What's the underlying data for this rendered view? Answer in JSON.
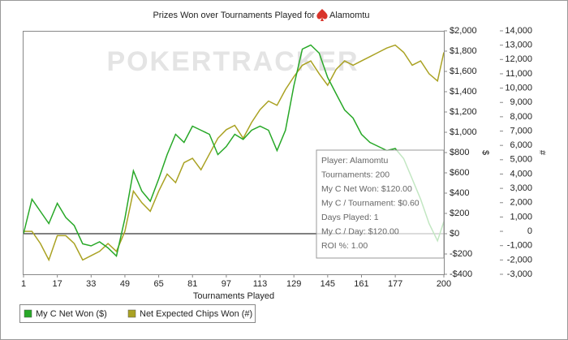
{
  "chart_data": {
    "type": "line",
    "title": "Prizes Won over Tournaments Played for",
    "player": "Alamomtu",
    "watermark": "POKERTRACKER",
    "x_label": "Tournaments Played",
    "y_label": "$",
    "y2_label": "#",
    "x": [
      1,
      5,
      9,
      13,
      17,
      21,
      25,
      29,
      33,
      37,
      41,
      45,
      49,
      53,
      57,
      61,
      65,
      69,
      73,
      77,
      81,
      85,
      89,
      93,
      97,
      101,
      105,
      109,
      113,
      117,
      121,
      125,
      129,
      133,
      137,
      141,
      145,
      149,
      153,
      157,
      161,
      165,
      169,
      173,
      177,
      181,
      185,
      189,
      193,
      197,
      200
    ],
    "series": [
      {
        "name": "My C Net Won ($)",
        "color": "#27a827",
        "values": [
          0,
          340,
          220,
          100,
          300,
          160,
          80,
          -100,
          -120,
          -80,
          -140,
          -220,
          150,
          620,
          420,
          320,
          540,
          780,
          980,
          900,
          1060,
          1020,
          980,
          780,
          860,
          980,
          930,
          1020,
          1060,
          1020,
          820,
          1020,
          1460,
          1820,
          1860,
          1780,
          1540,
          1380,
          1220,
          1140,
          980,
          900,
          860,
          820,
          840,
          740,
          540,
          340,
          100,
          -70,
          120
        ]
      },
      {
        "name": "Net Expected Chips Won (#)",
        "color": "#aaa223",
        "axis": "y2",
        "values": [
          0,
          0,
          -850,
          -2000,
          -300,
          -300,
          -850,
          -2000,
          -1700,
          -1400,
          -850,
          -1400,
          0,
          2800,
          2000,
          1400,
          2800,
          4000,
          3400,
          4800,
          5100,
          4300,
          5400,
          6500,
          7100,
          7400,
          6500,
          7600,
          8500,
          9100,
          8800,
          9900,
          10800,
          11600,
          11900,
          11000,
          10200,
          11300,
          11900,
          11600,
          11900,
          12200,
          12500,
          12800,
          13000,
          12500,
          11600,
          11900,
          11000,
          10500,
          12500
        ]
      }
    ],
    "xlim": [
      1,
      200
    ],
    "xticks": [
      1,
      17,
      33,
      49,
      65,
      81,
      97,
      113,
      129,
      145,
      161,
      177,
      200
    ],
    "ylim": [
      -400,
      2000
    ],
    "yticks": [
      {
        "value": -400,
        "label": "-$400"
      },
      {
        "value": -200,
        "label": "-$200"
      },
      {
        "value": 0,
        "label": "$0"
      },
      {
        "value": 200,
        "label": "$200"
      },
      {
        "value": 400,
        "label": "$400"
      },
      {
        "value": 600,
        "label": "$600"
      },
      {
        "value": 800,
        "label": "$800"
      },
      {
        "value": 1000,
        "label": "$1,000"
      },
      {
        "value": 1200,
        "label": "$1,200"
      },
      {
        "value": 1400,
        "label": "$1,400"
      },
      {
        "value": 1600,
        "label": "$1,600"
      },
      {
        "value": 1800,
        "label": "$1,800"
      },
      {
        "value": 2000,
        "label": "$2,000"
      }
    ],
    "y2lim": [
      -3000,
      14000
    ],
    "y2ticks": [
      {
        "value": -3000,
        "label": "-3,000"
      },
      {
        "value": -2000,
        "label": "-2,000"
      },
      {
        "value": -1000,
        "label": "-1,000"
      },
      0,
      {
        "value": 1000,
        "label": "1,000"
      },
      {
        "value": 2000,
        "label": "2,000"
      },
      {
        "value": 3000,
        "label": "3,000"
      },
      {
        "value": 4000,
        "label": "4,000"
      },
      {
        "value": 5000,
        "label": "5,000"
      },
      {
        "value": 6000,
        "label": "6,000"
      },
      {
        "value": 7000,
        "label": "7,000"
      },
      {
        "value": 8000,
        "label": "8,000"
      },
      {
        "value": 9000,
        "label": "9,000"
      },
      {
        "value": 10000,
        "label": "10,000"
      },
      {
        "value": 11000,
        "label": "11,000"
      },
      {
        "value": 12000,
        "label": "12,000"
      },
      {
        "value": 13000,
        "label": "13,000"
      },
      {
        "value": 14000,
        "label": "14,000"
      }
    ],
    "tooltip": [
      "Player: Alamomtu",
      "Tournaments: 200",
      "My C Net Won: $120.00",
      "My C / Tournament: $0.60",
      "Days Played: 1",
      "My C / Day: $120.00",
      "ROI %: 1.00"
    ]
  }
}
